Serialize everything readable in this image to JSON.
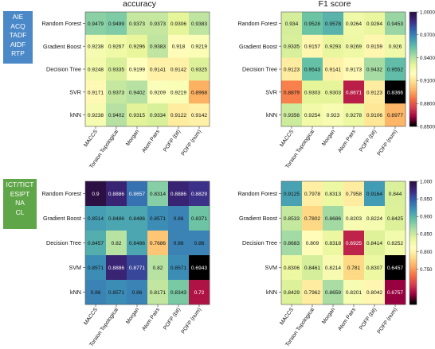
{
  "panels": {
    "top_label": [
      "AIE",
      "ACQ",
      "TADF",
      "AIDF",
      "RTP"
    ],
    "bottom_label": [
      "ICT/TICT",
      "ESIPT",
      "NA",
      "CL"
    ]
  },
  "colors": {
    "colormap": [
      "#2c1044",
      "#3d2a84",
      "#3366b0",
      "#3f97b7",
      "#66c2a5",
      "#abdda4",
      "#e6f598",
      "#ffffbf",
      "#fee08b",
      "#fdae61",
      "#f46d43",
      "#d53e4f",
      "#9e0142",
      "#000000"
    ]
  },
  "chart_data": [
    {
      "type": "heatmap",
      "title": "accuracy",
      "rows": [
        "Random Forest",
        "Gradient Boost",
        "Decision Tree",
        "SVR",
        "kNN"
      ],
      "cols": [
        "MACCS",
        "Torsion Topological",
        "Morgan",
        "Atom Pairs",
        "POFP (bit)",
        "POFP (num)"
      ],
      "values": [
        [
          "0.9479",
          "0.9499",
          "0.9373",
          "0.9373",
          "0.9306",
          "0.9383"
        ],
        [
          "0.9238",
          "0.9267",
          "0.9296",
          "0.9383",
          "0.918",
          "0.9219"
        ],
        [
          "0.9248",
          "0.9335",
          "0.9199",
          "0.9141",
          "0.9142",
          "0.9325"
        ],
        [
          "0.9171",
          "0.9373",
          "0.9402",
          "0.9209",
          "0.9219",
          "0.8968"
        ],
        [
          "0.9238",
          "0.9402",
          "0.9315",
          "0.9334",
          "0.9122",
          "0.9142"
        ]
      ],
      "vmin": 0.85,
      "vmax": 1.0,
      "colorbar": false
    },
    {
      "type": "heatmap",
      "title": "F1 score",
      "rows": [
        "Random Forest",
        "Gradient Boost",
        "Decision Tree",
        "SVR",
        "kNN"
      ],
      "cols": [
        "MACCS",
        "Torsion Topological",
        "Morgan",
        "Atom Pairs",
        "POFP (bit)",
        "POFP (num)"
      ],
      "values": [
        [
          "0.934",
          "0.9528",
          "0.9578",
          "0.9264",
          "0.9284",
          "0.9453"
        ],
        [
          "0.9335",
          "0.9157",
          "0.9293",
          "0.9269",
          "0.9159",
          "0.926"
        ],
        [
          "0.9123",
          "0.9543",
          "0.9141",
          "0.9173",
          "0.9432",
          "0.9552"
        ],
        [
          "0.8879",
          "0.9303",
          "0.9303",
          "0.8671",
          "0.9123",
          "0.8366"
        ],
        [
          "0.9356",
          "0.9254",
          "0.923",
          "0.9278",
          "0.9106",
          "0.8977"
        ]
      ],
      "vmin": 0.85,
      "vmax": 1.0,
      "colorbar": true,
      "colorbar_ticks": [
        "1.0000",
        "0.9700",
        "0.9400",
        "0.9100",
        "0.8800",
        "0.8500"
      ]
    },
    {
      "type": "heatmap",
      "title": "",
      "rows": [
        "Random Forest",
        "Gradient Boost",
        "Decision Tree",
        "SVM",
        "kNN"
      ],
      "cols": [
        "MACCS",
        "Torsion Topological",
        "Morgan",
        "Atom Pairs",
        "POFP (bit)",
        "POFP (num)"
      ],
      "values": [
        [
          "0.9",
          "0.8886",
          "0.8657",
          "0.8314",
          "0.8886",
          "0.8829"
        ],
        [
          "0.8514",
          "0.8486",
          "0.8486",
          "0.8571",
          "0.86",
          "0.8371"
        ],
        [
          "0.8457",
          "0.82",
          "0.8486",
          "0.7686",
          "0.86",
          "0.86"
        ],
        [
          "0.8571",
          "0.8886",
          "0.8771",
          "0.82",
          "0.8571",
          "0.6943"
        ],
        [
          "0.86",
          "0.8571",
          "0.86",
          "0.8171",
          "0.8343",
          "0.72"
        ]
      ],
      "vmin": 0.7,
      "vmax": 0.9,
      "colorbar": false
    },
    {
      "type": "heatmap",
      "title": "",
      "rows": [
        "Random Forest",
        "Gradient Boost",
        "Decision Tree",
        "SVM",
        "kNN"
      ],
      "cols": [
        "MACCS",
        "Torsion Topological",
        "Morgan",
        "Atom Pairs",
        "POFP (bit)",
        "POFP (num)"
      ],
      "values": [
        [
          "0.9125",
          "0.7978",
          "0.8313",
          "0.7958",
          "0.9164",
          "0.844"
        ],
        [
          "0.8533",
          "0.7802",
          "0.8686",
          "0.8203",
          "0.8224",
          "0.8425"
        ],
        [
          "0.8683",
          "0.809",
          "0.8318",
          "0.6925",
          "0.8414",
          "0.8252"
        ],
        [
          "0.8306",
          "0.8461",
          "0.8214",
          "0.781",
          "0.8307",
          "0.6457"
        ],
        [
          "0.8429",
          "0.7962",
          "0.8659",
          "0.8201",
          "0.8042",
          "0.6757"
        ]
      ],
      "vmin": 0.65,
      "vmax": 1.0,
      "colorbar": true,
      "colorbar_ticks": [
        "1.000",
        "0.950",
        "0.900",
        "0.850",
        "0.800",
        "0.750"
      ]
    }
  ]
}
